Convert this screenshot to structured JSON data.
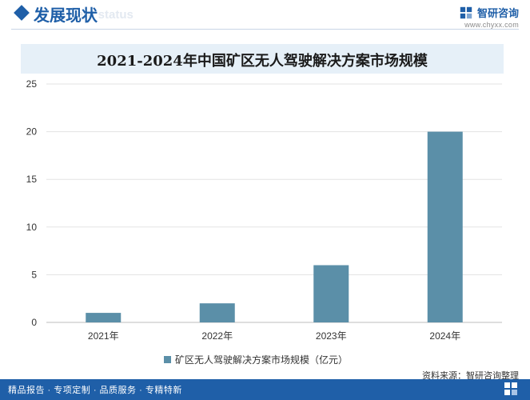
{
  "header": {
    "section_title": "发展现状",
    "section_subtitle": "ent status",
    "brand_name": "智研咨询",
    "brand_url": "www.chyxx.com"
  },
  "chart_data": {
    "type": "bar",
    "title": "2021-2024年中国矿区无人驾驶解决方案市场规模",
    "categories": [
      "2021年",
      "2022年",
      "2023年",
      "2024年"
    ],
    "series": [
      {
        "name": "矿区无人驾驶解决方案市场规模（亿元）",
        "values": [
          1,
          2,
          6,
          20
        ],
        "color": "#5b8fa8"
      }
    ],
    "ylim": [
      0,
      25
    ],
    "yticks": [
      0,
      5,
      10,
      15,
      20,
      25
    ],
    "grid": true,
    "legend_position": "bottom",
    "xlabel": "",
    "ylabel": ""
  },
  "footer": {
    "source": "资料来源：智研咨询整理",
    "left": "精品报告 · 专项定制 · 品质服务 · 专精特新"
  },
  "colors": {
    "brand": "#1f5fa8",
    "bar": "#5b8fa8",
    "band": "#e6f0f8",
    "grid": "#e3e3e3"
  }
}
